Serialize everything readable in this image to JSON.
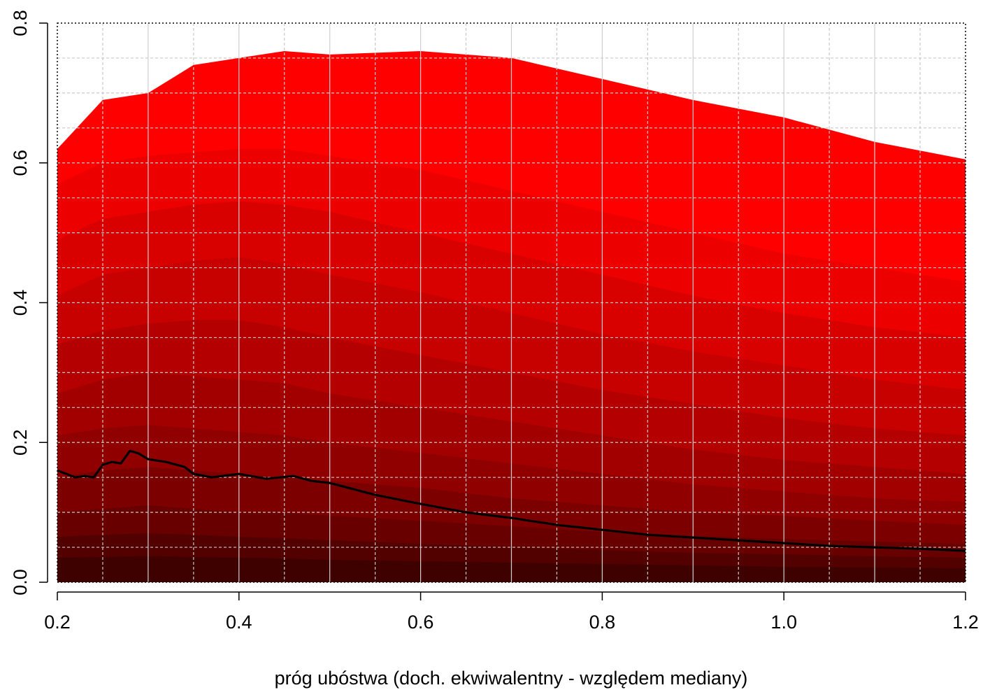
{
  "chart_data": {
    "type": "area",
    "title": "",
    "xlabel": "próg ubóstwa (doch. ekwiwalentny - względem mediany)",
    "ylabel": "",
    "xlim": [
      0.2,
      1.2
    ],
    "ylim": [
      0.0,
      0.8
    ],
    "x_ticks": [
      "0.2",
      "0.4",
      "0.6",
      "0.8",
      "1.0",
      "1.2"
    ],
    "y_ticks": [
      "0.0",
      "0.2",
      "0.4",
      "0.6",
      "0.8"
    ],
    "grid": true,
    "stacked_bands": {
      "x": [
        0.2,
        0.25,
        0.3,
        0.35,
        0.4,
        0.45,
        0.5,
        0.6,
        0.7,
        0.8,
        0.9,
        1.0,
        1.1,
        1.2
      ],
      "levels": [
        {
          "color": "#ff0000",
          "values": [
            0.62,
            0.69,
            0.7,
            0.74,
            0.75,
            0.76,
            0.755,
            0.76,
            0.75,
            0.72,
            0.69,
            0.665,
            0.63,
            0.605
          ]
        },
        {
          "color": "#ec0000",
          "values": [
            0.57,
            0.6,
            0.61,
            0.615,
            0.62,
            0.62,
            0.61,
            0.59,
            0.56,
            0.53,
            0.5,
            0.47,
            0.45,
            0.43
          ]
        },
        {
          "color": "#d90000",
          "values": [
            0.49,
            0.52,
            0.53,
            0.54,
            0.545,
            0.54,
            0.53,
            0.5,
            0.47,
            0.44,
            0.41,
            0.385,
            0.365,
            0.35
          ]
        },
        {
          "color": "#c70000",
          "values": [
            0.41,
            0.44,
            0.45,
            0.46,
            0.465,
            0.455,
            0.44,
            0.415,
            0.385,
            0.355,
            0.33,
            0.31,
            0.29,
            0.275
          ]
        },
        {
          "color": "#b50000",
          "values": [
            0.34,
            0.36,
            0.37,
            0.375,
            0.375,
            0.365,
            0.35,
            0.325,
            0.3,
            0.275,
            0.255,
            0.235,
            0.22,
            0.21
          ]
        },
        {
          "color": "#a20000",
          "values": [
            0.27,
            0.29,
            0.3,
            0.295,
            0.29,
            0.285,
            0.27,
            0.25,
            0.23,
            0.21,
            0.19,
            0.175,
            0.165,
            0.155
          ]
        },
        {
          "color": "#900000",
          "values": [
            0.21,
            0.22,
            0.225,
            0.22,
            0.215,
            0.21,
            0.2,
            0.185,
            0.17,
            0.155,
            0.14,
            0.13,
            0.12,
            0.115
          ]
        },
        {
          "color": "#7c0000",
          "values": [
            0.15,
            0.16,
            0.165,
            0.16,
            0.155,
            0.15,
            0.145,
            0.135,
            0.12,
            0.11,
            0.1,
            0.095,
            0.088,
            0.082
          ]
        },
        {
          "color": "#680000",
          "values": [
            0.1,
            0.105,
            0.11,
            0.105,
            0.1,
            0.1,
            0.095,
            0.088,
            0.08,
            0.072,
            0.066,
            0.062,
            0.058,
            0.055
          ]
        },
        {
          "color": "#530000",
          "values": [
            0.065,
            0.068,
            0.07,
            0.068,
            0.065,
            0.063,
            0.06,
            0.055,
            0.05,
            0.046,
            0.042,
            0.04,
            0.037,
            0.035
          ]
        },
        {
          "color": "#3f0000",
          "values": [
            0.035,
            0.036,
            0.037,
            0.036,
            0.035,
            0.034,
            0.032,
            0.03,
            0.028,
            0.026,
            0.024,
            0.022,
            0.021,
            0.02
          ]
        }
      ]
    },
    "series": [
      {
        "color": "#000000",
        "x": [
          0.2,
          0.21,
          0.22,
          0.23,
          0.24,
          0.25,
          0.26,
          0.27,
          0.28,
          0.29,
          0.3,
          0.32,
          0.34,
          0.35,
          0.37,
          0.4,
          0.43,
          0.46,
          0.48,
          0.5,
          0.55,
          0.6,
          0.65,
          0.7,
          0.75,
          0.8,
          0.85,
          0.9,
          0.95,
          1.0,
          1.05,
          1.1,
          1.15,
          1.2
        ],
        "y": [
          0.16,
          0.155,
          0.15,
          0.152,
          0.15,
          0.168,
          0.172,
          0.17,
          0.188,
          0.184,
          0.176,
          0.172,
          0.165,
          0.155,
          0.15,
          0.155,
          0.148,
          0.152,
          0.145,
          0.142,
          0.125,
          0.112,
          0.1,
          0.092,
          0.082,
          0.075,
          0.068,
          0.064,
          0.06,
          0.056,
          0.052,
          0.05,
          0.048,
          0.045
        ]
      }
    ]
  }
}
